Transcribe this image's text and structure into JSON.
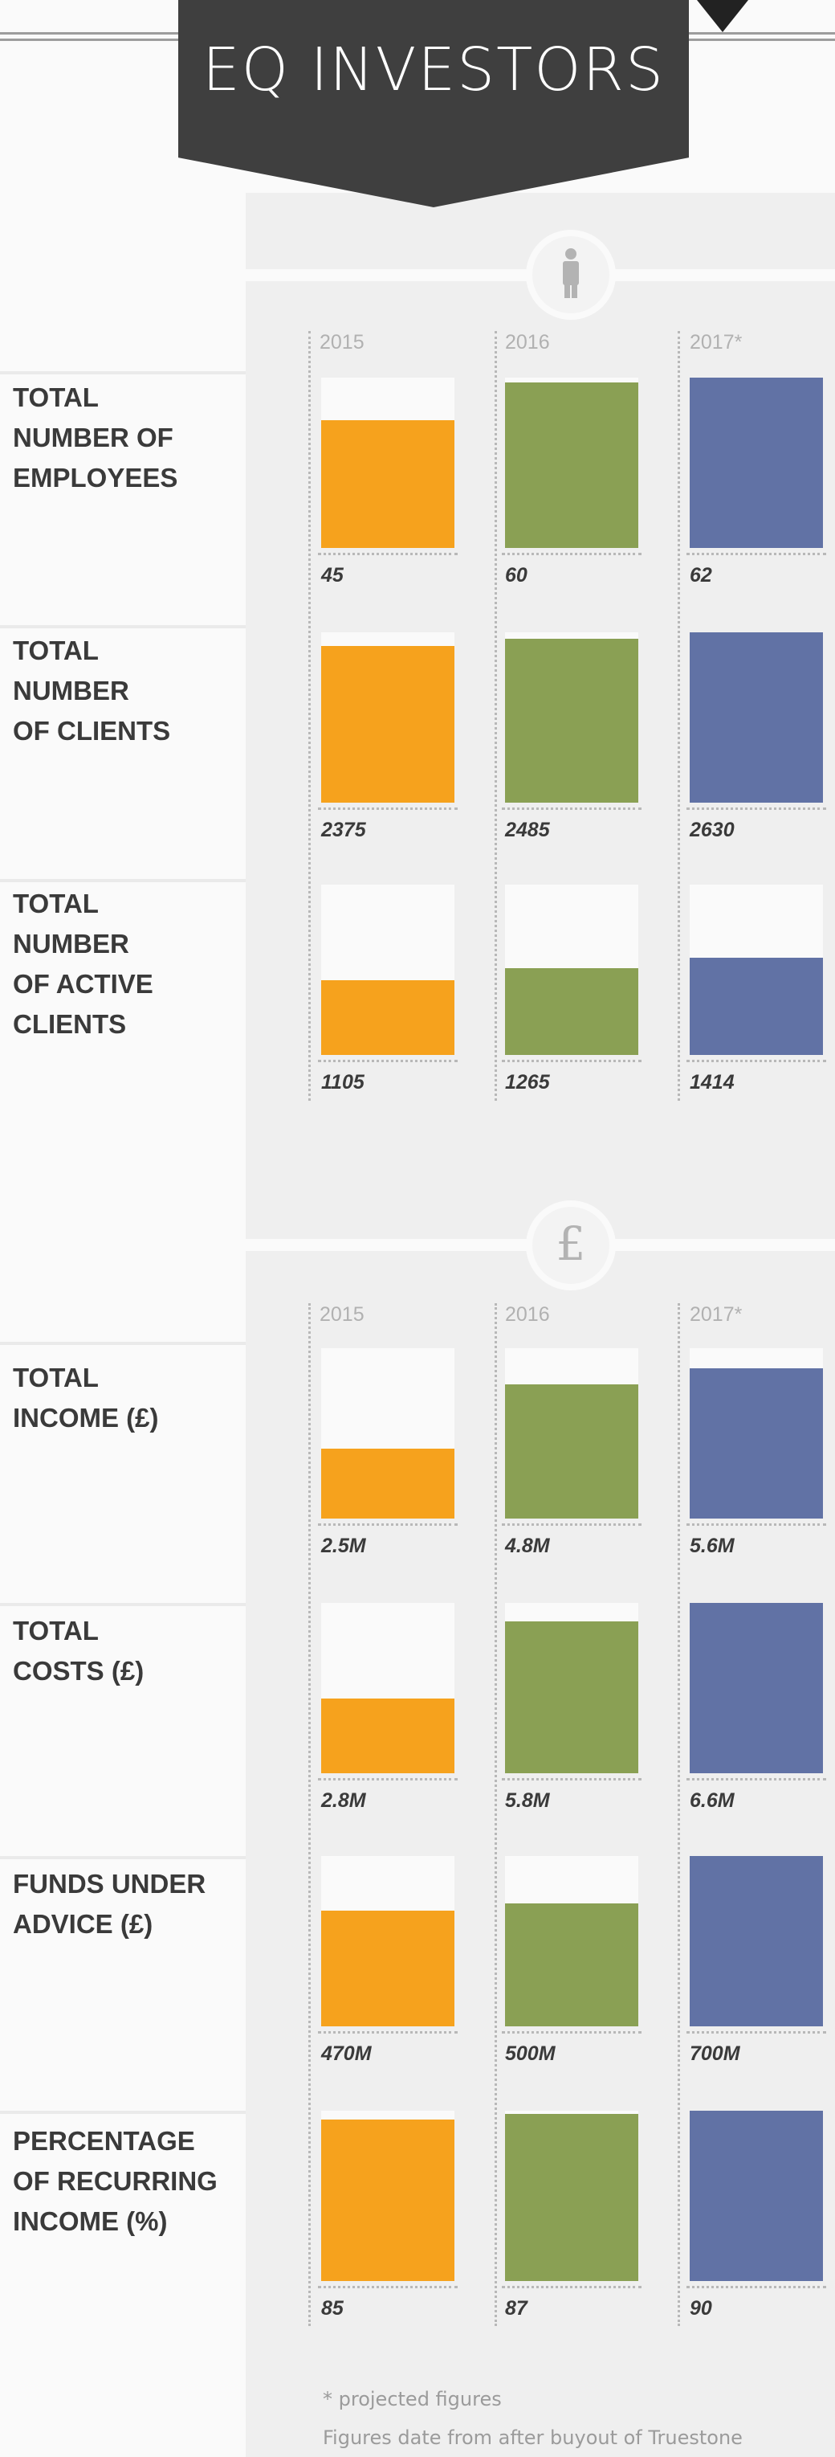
{
  "header": {
    "title": "EQ INVESTORS"
  },
  "sections": [
    {
      "icon": "person-icon"
    },
    {
      "icon": "pound-icon"
    }
  ],
  "chart_data": [
    {
      "type": "bar",
      "title": "TOTAL NUMBER OF EMPLOYEES",
      "title_display": "TOTAL\nNUMBER OF\nEMPLOYEES",
      "categories": [
        "2015",
        "2016",
        "2017*"
      ],
      "values": [
        45,
        60,
        62
      ],
      "value_labels": [
        "45",
        "60",
        "62"
      ],
      "colors": [
        "#f6a21d",
        "#8aa054",
        "#6172a5"
      ]
    },
    {
      "type": "bar",
      "title": "TOTAL NUMBER OF CLIENTS",
      "title_display": "TOTAL\nNUMBER\nOF CLIENTS",
      "categories": [
        "2015",
        "2016",
        "2017*"
      ],
      "values": [
        2375,
        2485,
        2630
      ],
      "value_labels": [
        "2375",
        "2485",
        "2630"
      ],
      "colors": [
        "#f6a21d",
        "#8aa054",
        "#6172a5"
      ]
    },
    {
      "type": "bar",
      "title": "TOTAL NUMBER OF ACTIVE CLIENTS",
      "title_display": "TOTAL\nNUMBER\nOF ACTIVE\nCLIENTS",
      "categories": [
        "2015",
        "2016",
        "2017*"
      ],
      "values": [
        1105,
        1265,
        1414
      ],
      "value_labels": [
        "1105",
        "1265",
        "1414"
      ],
      "colors": [
        "#f6a21d",
        "#8aa054",
        "#6172a5"
      ]
    },
    {
      "type": "bar",
      "title": "TOTAL INCOME (£)",
      "title_display": "TOTAL\nINCOME (£)",
      "categories": [
        "2015",
        "2016",
        "2017*"
      ],
      "values": [
        2.5,
        4.8,
        5.6
      ],
      "unit": "M",
      "value_labels": [
        "2.5M",
        "4.8M",
        "5.6M"
      ],
      "colors": [
        "#f6a21d",
        "#8aa054",
        "#6172a5"
      ]
    },
    {
      "type": "bar",
      "title": "TOTAL COSTS (£)",
      "title_display": "TOTAL\nCOSTS (£)",
      "categories": [
        "2015",
        "2016",
        "2017*"
      ],
      "values": [
        2.8,
        5.8,
        6.6
      ],
      "unit": "M",
      "value_labels": [
        "2.8M",
        "5.8M",
        "6.6M"
      ],
      "colors": [
        "#f6a21d",
        "#8aa054",
        "#6172a5"
      ]
    },
    {
      "type": "bar",
      "title": "FUNDS UNDER ADVICE (£)",
      "title_display": "FUNDS UNDER\nADVICE (£)",
      "categories": [
        "2015",
        "2016",
        "2017*"
      ],
      "values": [
        470,
        500,
        700
      ],
      "unit": "M",
      "value_labels": [
        "470M",
        "500M",
        "700M"
      ],
      "colors": [
        "#f6a21d",
        "#8aa054",
        "#6172a5"
      ]
    },
    {
      "type": "bar",
      "title": "PERCENTAGE OF RECURRING INCOME (%)",
      "title_display": "PERCENTAGE\nOF RECURRING\nINCOME (%)",
      "categories": [
        "2015",
        "2016",
        "2017*"
      ],
      "values": [
        85,
        87,
        90
      ],
      "value_labels": [
        "85",
        "87",
        "90"
      ],
      "colors": [
        "#f6a21d",
        "#8aa054",
        "#6172a5"
      ]
    }
  ],
  "footnotes": [
    "* projected figures",
    "Figures date from after buyout of Truestone"
  ]
}
